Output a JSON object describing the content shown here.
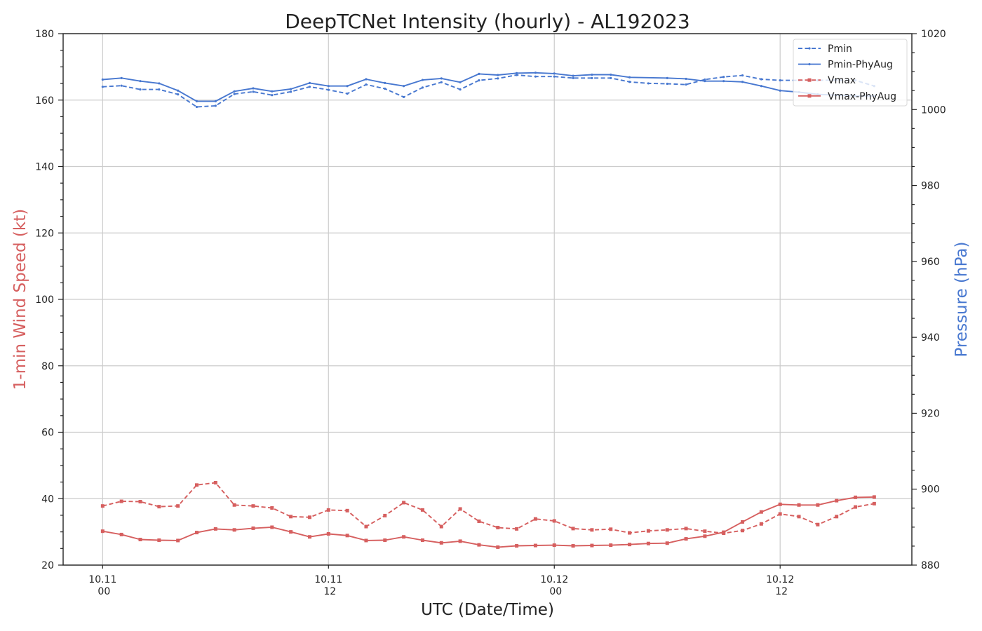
{
  "chart_data": {
    "type": "line",
    "title": "DeepTCNet Intensity (hourly) - AL192023",
    "xlabel": "UTC (Date/Time)",
    "ylabel_left": "1-min Wind Speed (kt)",
    "ylabel_right": "Pressure (hPa)",
    "ylim_left": [
      20,
      180
    ],
    "ylim_right": [
      880,
      1020
    ],
    "xlim": [
      -2.1,
      43.0
    ],
    "x_unit": "hours since 10.11 00 UTC",
    "x_ticks": [
      {
        "hour": 0,
        "line1": "10.11",
        "line2": "00"
      },
      {
        "hour": 12,
        "line1": "10.11",
        "line2": "12"
      },
      {
        "hour": 24,
        "line1": "10.12",
        "line2": "00"
      },
      {
        "hour": 36,
        "line1": "10.12",
        "line2": "12"
      }
    ],
    "yticks_left": [
      20,
      40,
      60,
      80,
      100,
      120,
      140,
      160,
      180
    ],
    "yticks_right": [
      880,
      900,
      920,
      940,
      960,
      980,
      1000,
      1020
    ],
    "grid": true,
    "legend_position": "top-right",
    "colors": {
      "vmax": "#d65f5f",
      "pmin": "#4878d0"
    },
    "x": [
      0,
      1,
      2,
      3,
      4,
      5,
      6,
      7,
      8,
      9,
      10,
      11,
      12,
      13,
      14,
      15,
      16,
      17,
      18,
      19,
      20,
      21,
      22,
      23,
      24,
      25,
      26,
      27,
      28,
      29,
      30,
      31,
      32,
      33,
      34,
      35,
      36,
      37,
      38,
      39,
      40,
      41
    ],
    "series": [
      {
        "name": "Pmin",
        "axis": "right",
        "style": "dashed",
        "color": "#4878d0",
        "values": [
          1006.0,
          1006.3,
          1005.3,
          1005.3,
          1004.0,
          1000.7,
          1001.0,
          1004.1,
          1004.7,
          1003.8,
          1004.7,
          1006.0,
          1005.2,
          1004.2,
          1006.6,
          1005.5,
          1003.3,
          1005.8,
          1007.2,
          1005.3,
          1007.7,
          1008.2,
          1009.1,
          1008.7,
          1008.7,
          1008.3,
          1008.3,
          1008.3,
          1007.3,
          1006.9,
          1006.8,
          1006.6,
          1007.9,
          1008.6,
          1009.0,
          1008.0,
          1007.7,
          1007.7,
          1007.7,
          1007.8,
          1007.7,
          1006.2
        ],
        "x": [
          0,
          1,
          2,
          3,
          4,
          5,
          6,
          7,
          8,
          9,
          10,
          11,
          12,
          13,
          14,
          15,
          16,
          17,
          18,
          19,
          20,
          21,
          22,
          23,
          24,
          25,
          26,
          27,
          28,
          29,
          30,
          31,
          32,
          33,
          34,
          35,
          36,
          37,
          38,
          39,
          40,
          41
        ]
      },
      {
        "name": "Pmin-PhyAug",
        "axis": "right",
        "style": "solid",
        "color": "#4878d0",
        "values": [
          1007.9,
          1008.3,
          1007.5,
          1006.9,
          1005.0,
          1002.2,
          1002.2,
          1004.8,
          1005.6,
          1004.8,
          1005.4,
          1007.0,
          1006.2,
          1006.2,
          1008.0,
          1007.0,
          1006.2,
          1007.8,
          1008.2,
          1007.2,
          1009.4,
          1009.1,
          1009.6,
          1009.7,
          1009.5,
          1008.9,
          1009.2,
          1009.2,
          1008.5,
          1008.3,
          1008.1,
          1007.5,
          1007.5,
          1007.3,
          1006.2,
          1005.0,
          1004.6,
          1004.0,
          1003.8,
          1003.6,
          1003.6
        ],
        "x": [
          0,
          1,
          2,
          3,
          4,
          5,
          6,
          7,
          8,
          9,
          10,
          11,
          12,
          13,
          14,
          15,
          16,
          17,
          18,
          19,
          20,
          21,
          22,
          23,
          24,
          25,
          26,
          27,
          28,
          30,
          31,
          32,
          33,
          34,
          35,
          36,
          37,
          38,
          39,
          40,
          41
        ]
      },
      {
        "name": "Vmax",
        "axis": "left",
        "style": "dashed",
        "color": "#d65f5f",
        "values": [
          37.8,
          39.2,
          39.1,
          37.6,
          37.8,
          44.1,
          44.8,
          38.1,
          37.8,
          37.2,
          34.6,
          34.4,
          36.6,
          36.4,
          31.6,
          34.9,
          38.8,
          36.6,
          31.6,
          36.9,
          33.2,
          31.3,
          30.9,
          33.9,
          33.3,
          31.0,
          30.6,
          30.8,
          29.7,
          30.3,
          30.6,
          31.0,
          30.2,
          29.6,
          30.4,
          32.4,
          35.4,
          34.6,
          32.2,
          34.6,
          37.5,
          38.5
        ],
        "x": [
          0,
          1,
          2,
          3,
          4,
          5,
          6,
          7,
          8,
          9,
          10,
          11,
          12,
          13,
          14,
          15,
          16,
          17,
          18,
          19,
          20,
          21,
          22,
          23,
          24,
          25,
          26,
          27,
          28,
          29,
          30,
          31,
          32,
          33,
          34,
          35,
          36,
          37,
          38,
          39,
          40,
          41
        ]
      },
      {
        "name": "Vmax-PhyAug",
        "axis": "left",
        "style": "solid",
        "color": "#d65f5f",
        "values": [
          30.2,
          29.2,
          27.7,
          27.5,
          27.4,
          29.8,
          30.9,
          30.6,
          31.1,
          31.4,
          30.0,
          28.5,
          29.4,
          28.9,
          27.4,
          27.5,
          28.5,
          27.5,
          26.7,
          27.2,
          26.1,
          25.4,
          25.8,
          25.9,
          26.0,
          25.8,
          25.9,
          26.0,
          26.2,
          26.5,
          26.6,
          27.9,
          28.7,
          29.9,
          33.0,
          36.0,
          38.3,
          38.1,
          38.1,
          39.4,
          40.4,
          40.5
        ],
        "x": [
          0,
          1,
          2,
          3,
          4,
          5,
          6,
          7,
          8,
          9,
          10,
          11,
          12,
          13,
          14,
          15,
          16,
          17,
          18,
          19,
          20,
          21,
          22,
          23,
          24,
          25,
          26,
          27,
          28,
          29,
          30,
          31,
          32,
          33,
          34,
          35,
          36,
          37,
          38,
          39,
          40,
          41
        ]
      }
    ]
  }
}
